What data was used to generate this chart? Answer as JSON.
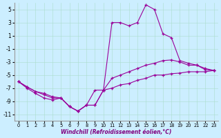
{
  "bg_color": "#cceeff",
  "line_color": "#990099",
  "ylim": [
    -12,
    6
  ],
  "xlim": [
    -0.5,
    23.5
  ],
  "yticks": [
    -11,
    -9,
    -7,
    -5,
    -3,
    -1,
    1,
    3,
    5
  ],
  "xticks": [
    0,
    1,
    2,
    3,
    4,
    5,
    6,
    7,
    8,
    9,
    10,
    11,
    12,
    13,
    14,
    15,
    16,
    17,
    18,
    19,
    20,
    21,
    22,
    23
  ],
  "xlabel": "Windchill (Refroidissement éolien,°C)",
  "x": [
    0,
    1,
    2,
    3,
    4,
    5,
    6,
    7,
    8,
    9,
    10,
    11,
    12,
    13,
    14,
    15,
    16,
    17,
    18,
    19,
    20,
    21,
    22,
    23
  ],
  "line1": [
    -6.0,
    -6.8,
    -7.5,
    -8.0,
    -8.5,
    -8.5,
    -9.8,
    -10.5,
    -9.6,
    -9.6,
    -7.3,
    3.0,
    3.0,
    2.5,
    3.0,
    5.7,
    5.0,
    1.3,
    0.7,
    -2.8,
    -3.2,
    -3.5,
    -4.2,
    -4.3
  ],
  "line2": [
    -6.0,
    -6.8,
    -7.5,
    -7.8,
    -8.3,
    -8.5,
    -9.8,
    -10.5,
    -9.6,
    -7.3,
    -7.3,
    -5.5,
    -5.0,
    -4.5,
    -4.0,
    -3.5,
    -3.2,
    -2.8,
    -2.7,
    -3.0,
    -3.5,
    -3.5,
    -4.0,
    -4.3
  ],
  "line3": [
    -6.0,
    -7.0,
    -7.8,
    -8.5,
    -8.8,
    -8.5,
    -9.8,
    -10.5,
    -9.6,
    -9.6,
    -7.3,
    -7.0,
    -6.5,
    -6.3,
    -5.8,
    -5.5,
    -5.0,
    -5.0,
    -4.8,
    -4.7,
    -4.5,
    -4.5,
    -4.5,
    -4.3
  ]
}
